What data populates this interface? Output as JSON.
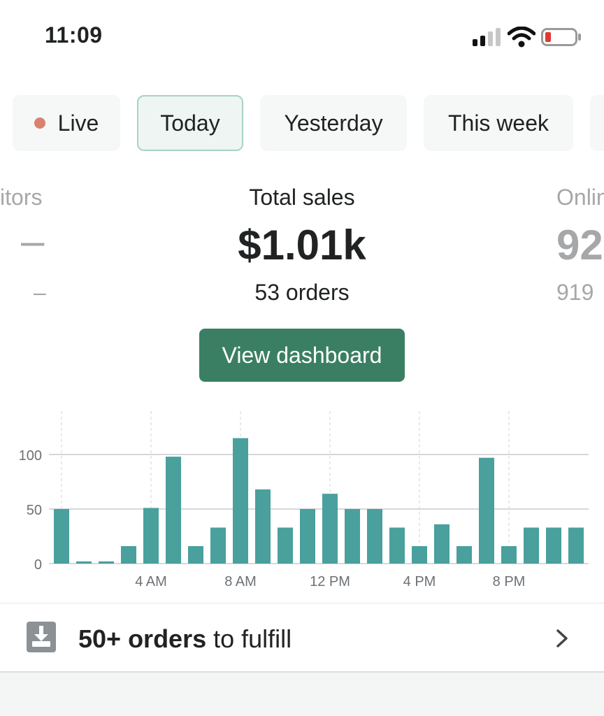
{
  "status_bar": {
    "time": "11:09",
    "battery_color": "#e03a2f"
  },
  "tabs": [
    {
      "label": "Live",
      "dot_color": "#d9826f"
    },
    {
      "label": "Today",
      "active": true
    },
    {
      "label": "Yesterday"
    },
    {
      "label": "This week"
    }
  ],
  "metrics": {
    "left": {
      "label": "itors",
      "value": "–",
      "sub": "–"
    },
    "center": {
      "label": "Total sales",
      "value": "$1.01k",
      "sub": "53 orders"
    },
    "right": {
      "label": "Onlin",
      "value": "92",
      "sub": "919"
    }
  },
  "dashboard_button": "View dashboard",
  "chart_data": {
    "type": "bar",
    "x": [
      0,
      1,
      2,
      3,
      4,
      5,
      6,
      7,
      8,
      9,
      10,
      11,
      12,
      13,
      14,
      15,
      16,
      17,
      18,
      19,
      20,
      21,
      22,
      23
    ],
    "values": [
      50,
      2,
      2,
      16,
      51,
      98,
      16,
      33,
      115,
      68,
      33,
      50,
      64,
      50,
      50,
      33,
      16,
      36,
      16,
      97,
      16,
      33,
      33,
      33
    ],
    "yticks": [
      "0",
      "50",
      "100"
    ],
    "xtick_labels": [
      "4 AM",
      "8 AM",
      "12 PM",
      "4 PM",
      "8 PM"
    ],
    "ylim": [
      0,
      130
    ],
    "bar_color": "#49a09d"
  },
  "fulfill": {
    "bold": "50+ orders",
    "rest": " to fulfill"
  }
}
